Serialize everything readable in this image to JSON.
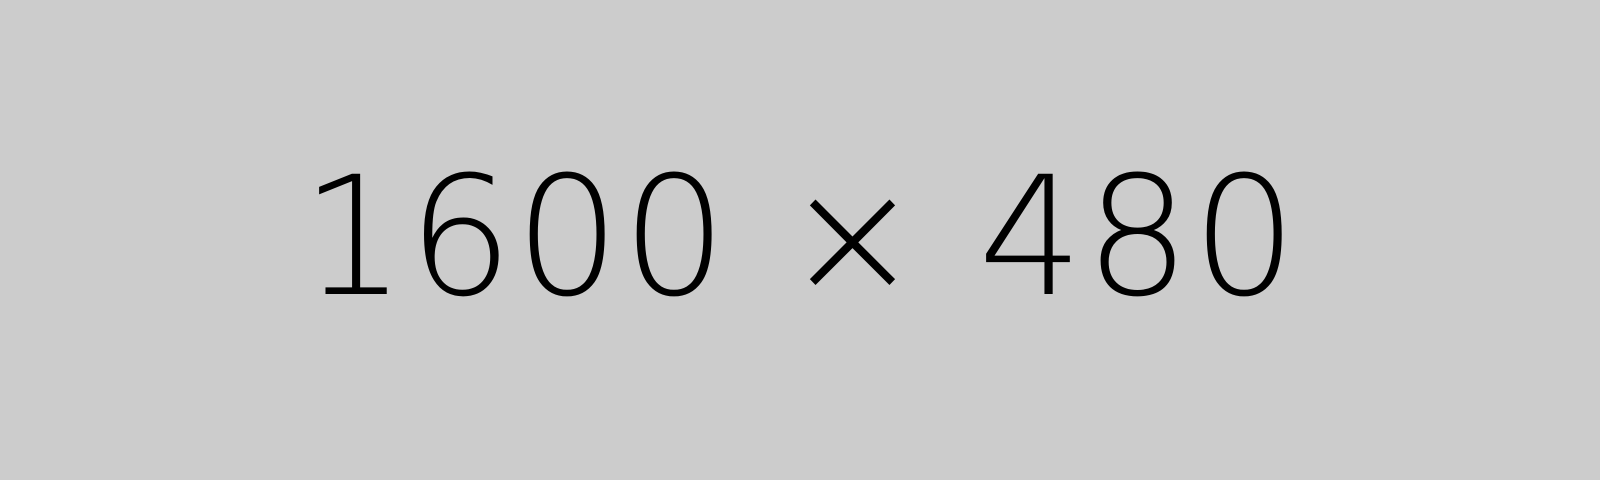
{
  "placeholder": {
    "label": "1600 × 480",
    "background_color": "#cccccc",
    "text_color": "#000000"
  }
}
